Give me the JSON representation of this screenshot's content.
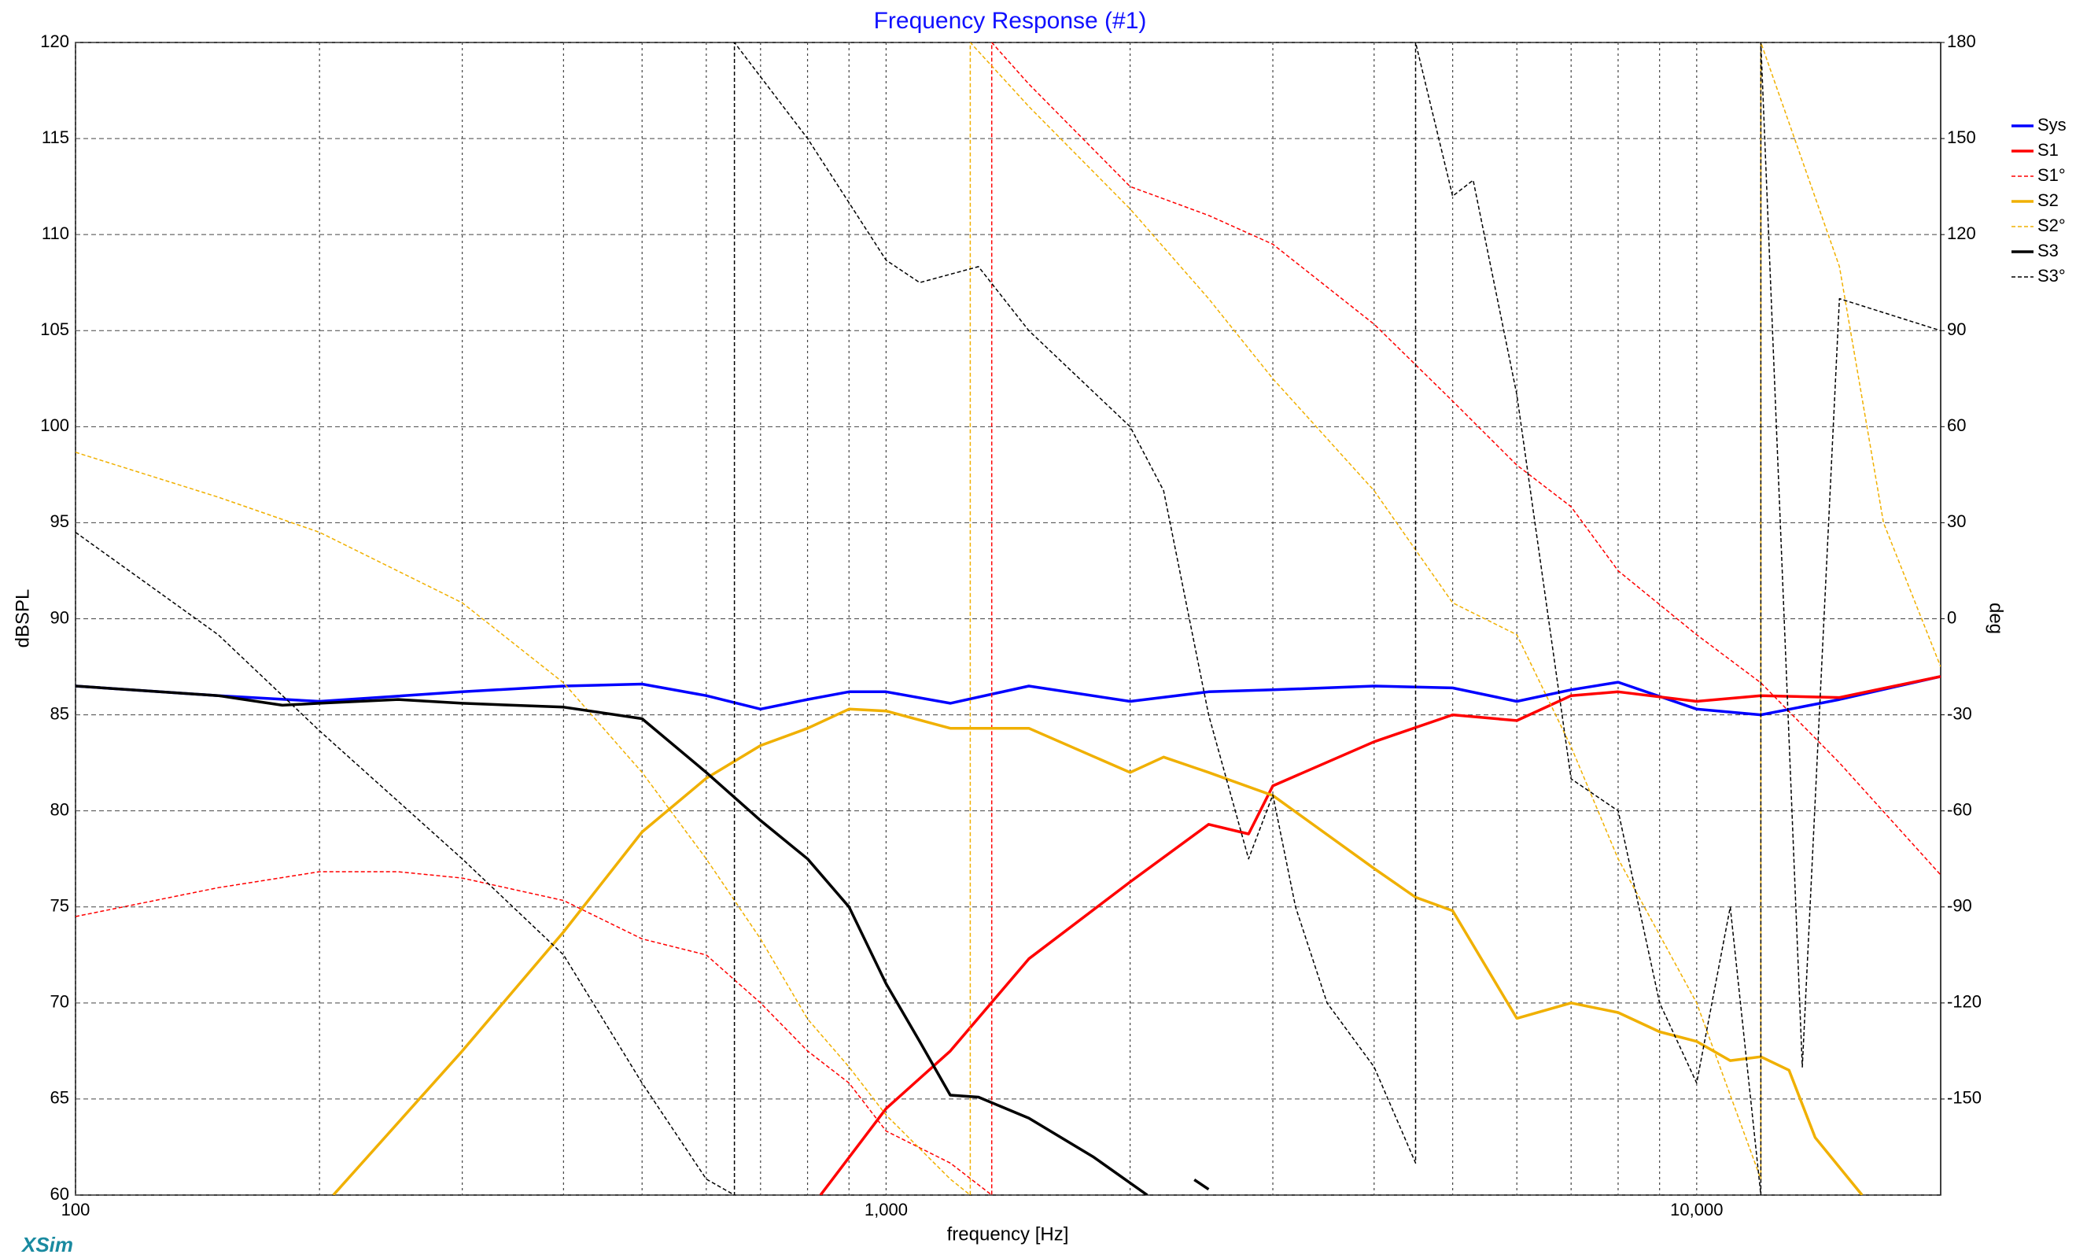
{
  "chart_data": {
    "type": "line",
    "title": "Frequency Response (#1)",
    "xlabel": "frequency [Hz]",
    "ylabel": "dBSPL",
    "y2label": "deg",
    "watermark": "XSim",
    "xscale": "log",
    "xlim": [
      100,
      20000
    ],
    "xticks": [
      100,
      {
        "value": 1000,
        "label": "1,000"
      },
      {
        "value": 10000,
        "label": "10,000"
      }
    ],
    "xminorticks": [
      200,
      300,
      400,
      500,
      600,
      700,
      800,
      900,
      2000,
      3000,
      4000,
      5000,
      6000,
      7000,
      8000,
      9000
    ],
    "ylim": [
      60,
      120
    ],
    "yticks": [
      60,
      65,
      70,
      75,
      80,
      85,
      90,
      95,
      100,
      105,
      110,
      115,
      120
    ],
    "y2lim": [
      -180,
      180
    ],
    "y2ticks": [
      -150,
      -120,
      -90,
      -60,
      -30,
      0,
      30,
      60,
      90,
      120,
      150,
      180
    ],
    "grid": true,
    "legend": "right",
    "series": [
      {
        "name": "Sys",
        "color": "#0000ff",
        "style": "solid",
        "x": [
          100,
          150,
          200,
          300,
          400,
          500,
          600,
          700,
          800,
          900,
          1000,
          1200,
          1500,
          2000,
          2500,
          3000,
          4000,
          5000,
          6000,
          7000,
          8000,
          10000,
          12000,
          15000,
          20000
        ],
        "values": [
          86.5,
          86,
          85.7,
          86.2,
          86.5,
          86.6,
          86,
          85.3,
          85.8,
          86.2,
          86.2,
          85.6,
          86.5,
          85.7,
          86.2,
          86.3,
          86.5,
          86.4,
          85.7,
          86.3,
          86.7,
          85.3,
          85,
          85.8,
          87
        ]
      },
      {
        "name": "S1",
        "color": "#ff0000",
        "style": "solid",
        "x": [
          830,
          1000,
          1200,
          1500,
          2000,
          2500,
          2800,
          3000,
          4000,
          5000,
          6000,
          7000,
          8000,
          10000,
          12000,
          15000,
          20000
        ],
        "values": [
          60,
          64.5,
          67.5,
          72.3,
          76.3,
          79.3,
          78.8,
          81.3,
          83.6,
          85,
          84.7,
          86,
          86.2,
          85.7,
          86,
          85.9,
          87
        ]
      },
      {
        "name": "S1°",
        "color": "#ff0000",
        "style": "dashed",
        "axis": "y2",
        "x": [
          100,
          150,
          200,
          250,
          300,
          400,
          500,
          600,
          700,
          800,
          900,
          1000,
          1200,
          1350,
          1350,
          1500,
          2000,
          2500,
          3000,
          4000,
          5000,
          6000,
          7000,
          8000,
          10000,
          12000,
          15000,
          20000
        ],
        "values": [
          -93,
          -84,
          -79,
          -79,
          -81,
          -88,
          -100,
          -105,
          -120,
          -135,
          -145,
          -160,
          -170,
          -180,
          180,
          167,
          135,
          126,
          117,
          92,
          68,
          48,
          35,
          15,
          -5,
          -20,
          -45,
          -80
        ]
      },
      {
        "name": "S2",
        "color": "#f0b000",
        "style": "solid",
        "x": [
          208,
          300,
          400,
          500,
          600,
          700,
          800,
          900,
          1000,
          1200,
          1500,
          2000,
          2200,
          2500,
          3000,
          4000,
          4500,
          5000,
          6000,
          7000,
          8000,
          9000,
          10000,
          11000,
          12000,
          13000,
          14000,
          16000
        ],
        "values": [
          60,
          67.5,
          73.7,
          78.9,
          81.7,
          83.4,
          84.3,
          85.3,
          85.2,
          84.3,
          84.3,
          82,
          82.8,
          82,
          80.8,
          77,
          75.5,
          74.8,
          69.2,
          70,
          69.5,
          68.5,
          68,
          67,
          67.2,
          66.5,
          63,
          60
        ]
      },
      {
        "name": "S2°",
        "color": "#f0b000",
        "style": "dashed",
        "axis": "y2",
        "x": [
          100,
          150,
          200,
          300,
          400,
          500,
          600,
          700,
          800,
          900,
          1000,
          1200,
          1270,
          1270,
          1500,
          2000,
          2500,
          3000,
          4000,
          5000,
          6000,
          7000,
          8000,
          10000,
          12000,
          12000,
          15000,
          17000,
          20000
        ],
        "values": [
          52,
          38,
          27,
          5,
          -20,
          -48,
          -75,
          -100,
          -125,
          -140,
          -155,
          -175,
          -180,
          180,
          160,
          128,
          100,
          75,
          40,
          5,
          -5,
          -40,
          -75,
          -120,
          -175,
          180,
          110,
          30,
          -15
        ]
      },
      {
        "name": "S3",
        "color": "#000000",
        "style": "solid",
        "x": [
          100,
          150,
          180,
          200,
          250,
          300,
          400,
          500,
          600,
          700,
          800,
          900,
          1000,
          1100,
          1200,
          1300,
          1500,
          1800,
          2100,
          2300,
          2400,
          2500
        ],
        "values": [
          86.5,
          86,
          85.5,
          85.6,
          85.8,
          85.6,
          85.4,
          84.8,
          82,
          79.5,
          77.5,
          75,
          71,
          68,
          65.2,
          65.1,
          64,
          62,
          60,
          null,
          60.8,
          60.3
        ]
      },
      {
        "name": "S3°",
        "color": "#000000",
        "style": "dashed",
        "axis": "y2",
        "x": [
          100,
          150,
          200,
          300,
          400,
          500,
          600,
          650,
          650,
          800,
          1000,
          1100,
          1300,
          1500,
          2000,
          2200,
          2500,
          2800,
          3000,
          3200,
          3500,
          4000,
          4500,
          4500,
          5000,
          5300,
          6000,
          7000,
          8000,
          9000,
          10000,
          11000,
          12000,
          12000,
          13500,
          15000,
          20000
        ],
        "values": [
          27,
          -5,
          -35,
          -75,
          -105,
          -145,
          -175,
          -180,
          180,
          150,
          112,
          105,
          110,
          90,
          60,
          40,
          -30,
          -75,
          -55,
          -90,
          -120,
          -140,
          -170,
          180,
          132,
          137,
          70,
          -50,
          -60,
          -120,
          -145,
          -90,
          -180,
          180,
          -140,
          100,
          90
        ]
      }
    ]
  }
}
